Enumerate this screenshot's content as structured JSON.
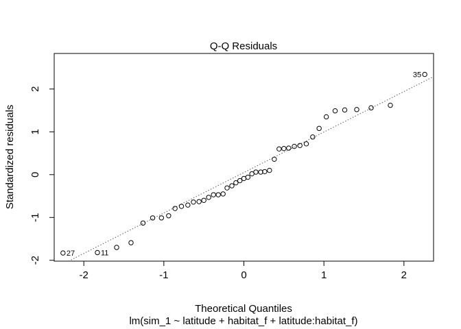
{
  "chart_data": {
    "type": "scatter",
    "title": "Q-Q Residuals",
    "xlabel": "Theoretical Quantiles",
    "ylabel": "Standardized residuals",
    "subtitle": "lm(sim_1 ~ latitude + habitat_f + latitude:habitat_f)",
    "xlim": [
      -2.37,
      2.37
    ],
    "ylim": [
      -2.02,
      2.83
    ],
    "xticks": [
      -2,
      -1,
      0,
      1,
      2
    ],
    "yticks": [
      -2,
      -1,
      0,
      1,
      2
    ],
    "xtick_labels": [
      "-2",
      "-1",
      "0",
      "1",
      "2"
    ],
    "ytick_labels": [
      "-2",
      "-1",
      "0",
      "1",
      "2"
    ],
    "grid": false,
    "reference_line": {
      "style": "dotted",
      "slope": 0.945,
      "intercept": 0.05
    },
    "points": [
      {
        "x": -2.26,
        "y": -1.83,
        "label": "27"
      },
      {
        "x": -1.83,
        "y": -1.82,
        "label": "11"
      },
      {
        "x": -1.59,
        "y": -1.7
      },
      {
        "x": -1.41,
        "y": -1.59
      },
      {
        "x": -1.26,
        "y": -1.13
      },
      {
        "x": -1.14,
        "y": -1.01
      },
      {
        "x": -1.03,
        "y": -1.01
      },
      {
        "x": -0.94,
        "y": -0.96
      },
      {
        "x": -0.86,
        "y": -0.79
      },
      {
        "x": -0.78,
        "y": -0.74
      },
      {
        "x": -0.7,
        "y": -0.71
      },
      {
        "x": -0.63,
        "y": -0.64
      },
      {
        "x": -0.56,
        "y": -0.63
      },
      {
        "x": -0.5,
        "y": -0.6
      },
      {
        "x": -0.44,
        "y": -0.53
      },
      {
        "x": -0.38,
        "y": -0.47
      },
      {
        "x": -0.32,
        "y": -0.47
      },
      {
        "x": -0.26,
        "y": -0.45
      },
      {
        "x": -0.21,
        "y": -0.31
      },
      {
        "x": -0.15,
        "y": -0.26
      },
      {
        "x": -0.1,
        "y": -0.19
      },
      {
        "x": -0.05,
        "y": -0.14
      },
      {
        "x": 0.0,
        "y": -0.09
      },
      {
        "x": 0.05,
        "y": -0.06
      },
      {
        "x": 0.1,
        "y": 0.02
      },
      {
        "x": 0.15,
        "y": 0.06
      },
      {
        "x": 0.21,
        "y": 0.06
      },
      {
        "x": 0.26,
        "y": 0.07
      },
      {
        "x": 0.32,
        "y": 0.1
      },
      {
        "x": 0.38,
        "y": 0.36
      },
      {
        "x": 0.44,
        "y": 0.6
      },
      {
        "x": 0.5,
        "y": 0.61
      },
      {
        "x": 0.56,
        "y": 0.62
      },
      {
        "x": 0.63,
        "y": 0.66
      },
      {
        "x": 0.7,
        "y": 0.68
      },
      {
        "x": 0.78,
        "y": 0.72
      },
      {
        "x": 0.86,
        "y": 0.88
      },
      {
        "x": 0.94,
        "y": 1.08
      },
      {
        "x": 1.03,
        "y": 1.35
      },
      {
        "x": 1.14,
        "y": 1.49
      },
      {
        "x": 1.26,
        "y": 1.51
      },
      {
        "x": 1.41,
        "y": 1.52
      },
      {
        "x": 1.59,
        "y": 1.56
      },
      {
        "x": 1.83,
        "y": 1.62
      },
      {
        "x": 2.26,
        "y": 2.34,
        "label": "35"
      }
    ],
    "colors": {
      "points": "#000000",
      "line": "#555555",
      "axes": "#000000"
    }
  }
}
